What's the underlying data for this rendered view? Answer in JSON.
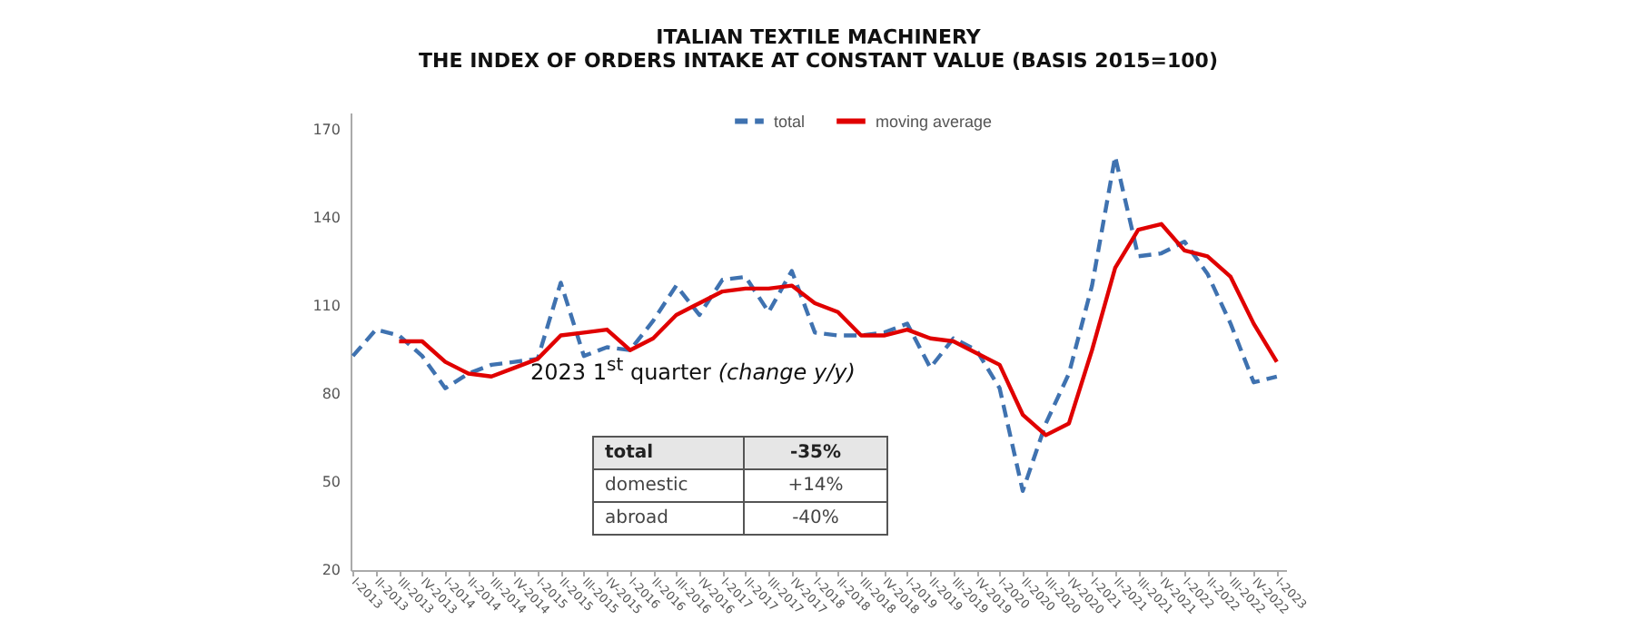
{
  "chart_data": {
    "type": "line",
    "title": "ITALIAN TEXTILE MACHINERY\nTHE INDEX OF ORDERS INTAKE AT CONSTANT VALUE (BASIS 2015=100)",
    "categories": [
      "I-2013",
      "II-2013",
      "III-2013",
      "IV-2013",
      "I-2014",
      "II-2014",
      "III-2014",
      "IV-2014",
      "I-2015",
      "II-2015",
      "III-2015",
      "IV-2015",
      "I-2016",
      "II-2016",
      "III-2016",
      "IV-2016",
      "I-2017",
      "II-2017",
      "III-2017",
      "IV-2017",
      "I-2018",
      "II-2018",
      "III-2018",
      "IV-2018",
      "I-2019",
      "II-2019",
      "III-2019",
      "IV-2019",
      "I-2020",
      "II-2020",
      "III-2020",
      "IV-2020",
      "I-2021",
      "II-2021",
      "III-2021",
      "IV-2021",
      "I-2022",
      "II-2022",
      "III-2022",
      "IV-2022",
      "I-2023"
    ],
    "series": [
      {
        "name": "total",
        "color": "#3f72b0",
        "line_style": "dashed",
        "values": [
          93,
          102,
          100,
          93,
          82,
          87,
          90,
          91,
          92,
          118,
          93,
          96,
          95,
          105,
          117,
          107,
          119,
          120,
          108,
          122,
          101,
          100,
          100,
          101,
          104,
          89,
          99,
          95,
          82,
          47,
          70,
          87,
          117,
          161,
          127,
          128,
          132,
          121,
          104,
          84,
          86
        ]
      },
      {
        "name": "moving average",
        "color": "#e00000",
        "line_style": "solid",
        "values": [
          null,
          null,
          98,
          98,
          91,
          87,
          86,
          89,
          92,
          100,
          101,
          102,
          95,
          99,
          107,
          111,
          115,
          116,
          116,
          117,
          111,
          108,
          100,
          100,
          102,
          99,
          98,
          94,
          90,
          73,
          66,
          70,
          95,
          123,
          136,
          138,
          129,
          127,
          120,
          104,
          91
        ]
      }
    ],
    "ylim": [
      20,
      176
    ],
    "yticks": [
      20,
      50,
      80,
      110,
      140,
      170
    ],
    "grid": false,
    "legend": "top",
    "annotations": [
      "2023 1$^{st}$ quarter (change y/y)",
      "total",
      "-35%",
      "domestic",
      "+14%",
      "abroad",
      "-40%"
    ]
  }
}
